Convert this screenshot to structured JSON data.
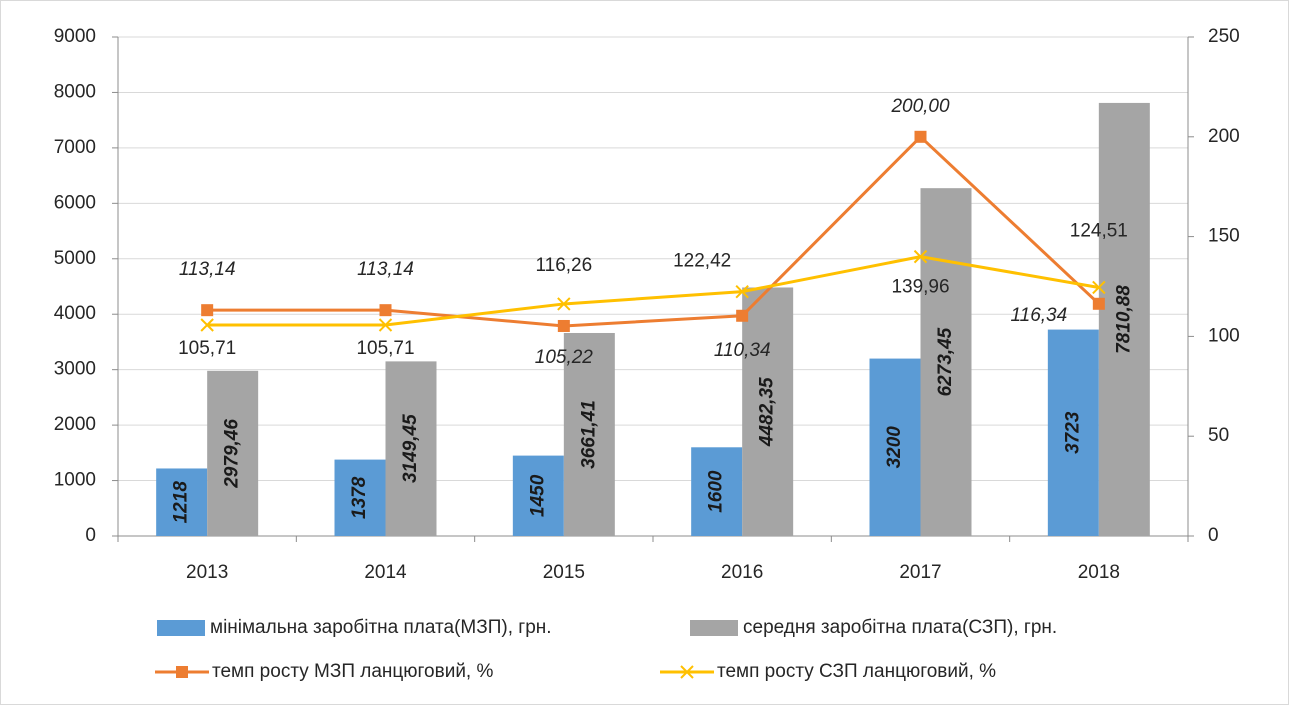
{
  "chart_data": {
    "type": "bar-line",
    "categories": [
      "2013",
      "2014",
      "2015",
      "2016",
      "2017",
      "2018"
    ],
    "series": [
      {
        "name": "мінімальна заробітна плата(МЗП), грн.",
        "type": "bar",
        "color": "#5b9bd5",
        "values": [
          1218,
          1378,
          1450,
          1600,
          3200,
          3723
        ]
      },
      {
        "name": "середня заробітна плата(СЗП), грн.",
        "type": "bar",
        "color": "#a5a5a5",
        "values": [
          2979.46,
          3149.45,
          3661.41,
          4482.35,
          6273.45,
          7810.88
        ],
        "value_labels": [
          "2979,46",
          "3149,45",
          "3661,41",
          "4482,35",
          "6273,45",
          "7810,88"
        ]
      },
      {
        "name": "темп росту МЗП ланцюговий, %",
        "type": "line",
        "marker": "square",
        "axis": "y2",
        "color": "#ed7d31",
        "values": [
          113.14,
          113.14,
          105.22,
          110.34,
          200.0,
          116.34
        ],
        "value_labels": [
          "113,14",
          "113,14",
          "105,22",
          "110,34",
          "200,00",
          "116,34"
        ]
      },
      {
        "name": "темп росту СЗП ланцюговий, %",
        "type": "line",
        "marker": "x",
        "axis": "y2",
        "color": "#ffc000",
        "values": [
          105.71,
          105.71,
          116.26,
          122.42,
          139.96,
          124.51
        ],
        "value_labels": [
          "105,71",
          "105,71",
          "116,26",
          "122,42",
          "139,96",
          "124,51"
        ]
      }
    ],
    "ylim": [
      0,
      9000
    ],
    "yticks": [
      0,
      1000,
      2000,
      3000,
      4000,
      5000,
      6000,
      7000,
      8000,
      9000
    ],
    "y2lim": [
      0,
      250
    ],
    "y2ticks": [
      0,
      50,
      100,
      150,
      200,
      250
    ],
    "grid": true
  }
}
